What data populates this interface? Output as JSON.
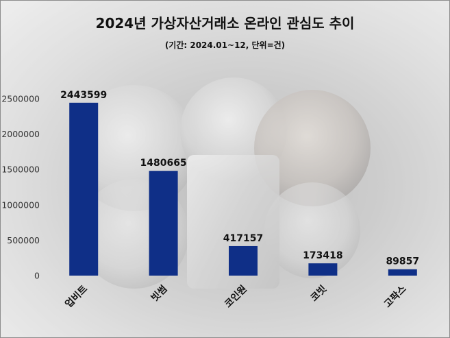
{
  "title": "2024년 가상자산거래소 온라인 관심도 추이",
  "subtitle": "(기간: 2024.01~12, 단위=건)",
  "colors": {
    "bar": "#0f2f87"
  },
  "chart_data": {
    "type": "bar",
    "title": "2024년 가상자산거래소 온라인 관심도 추이",
    "subtitle": "(기간: 2024.01~12, 단위=건)",
    "categories": [
      "업비트",
      "빗썸",
      "코인원",
      "코빗",
      "고팍스"
    ],
    "values": [
      2443599,
      1480665,
      417157,
      173418,
      89857
    ],
    "value_labels": [
      "2443599",
      "1480665",
      "417157",
      "173418",
      "89857"
    ],
    "y_ticks": [
      0,
      500000,
      1000000,
      1500000,
      2000000,
      2500000
    ],
    "y_tick_labels": [
      "0",
      "500000",
      "1000000",
      "1500000",
      "2000000",
      "2500000"
    ],
    "ylim": [
      0,
      2500000
    ],
    "xlabel": "",
    "ylabel": "",
    "grid": false,
    "legend": "none",
    "x_label_rotation": -45,
    "background": "coins-photo"
  }
}
